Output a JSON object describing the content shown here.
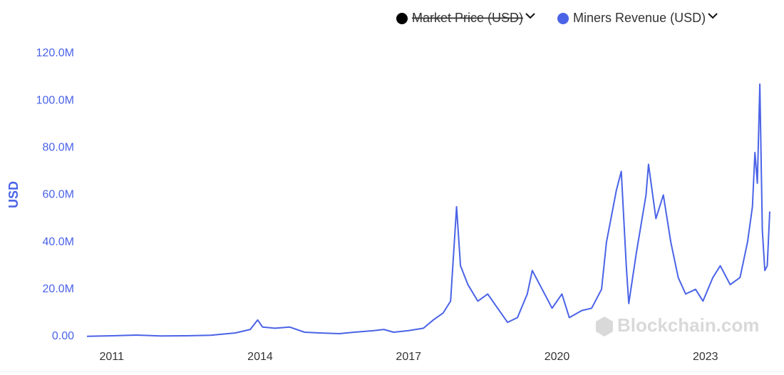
{
  "chart_data": {
    "type": "line",
    "y_label": "USD",
    "watermark": "Blockchain.com",
    "xlim": [
      2010.5,
      2024.3
    ],
    "xticks": [
      2011,
      2014,
      2017,
      2020,
      2023
    ],
    "ylim": [
      0,
      120000000
    ],
    "yticks": [
      {
        "value": 0,
        "label": "0.00"
      },
      {
        "value": 20000000,
        "label": "20.0M"
      },
      {
        "value": 40000000,
        "label": "40.0M"
      },
      {
        "value": 60000000,
        "label": "60.0M"
      },
      {
        "value": 80000000,
        "label": "80.0M"
      },
      {
        "value": 100000000,
        "label": "100.0M"
      },
      {
        "value": 120000000,
        "label": "120.0M"
      }
    ],
    "grid": false,
    "legend_hidden": [
      {
        "name": "Market Price (USD)",
        "color": "#000000"
      }
    ],
    "x": [
      2010.5,
      2011,
      2011.5,
      2012,
      2012.5,
      2013,
      2013.5,
      2013.8,
      2013.95,
      2014.05,
      2014.3,
      2014.6,
      2014.9,
      2015.2,
      2015.6,
      2015.9,
      2016.3,
      2016.5,
      2016.7,
      2017.0,
      2017.3,
      2017.5,
      2017.7,
      2017.85,
      2017.97,
      2018.05,
      2018.2,
      2018.4,
      2018.6,
      2018.8,
      2019.0,
      2019.2,
      2019.4,
      2019.5,
      2019.7,
      2019.9,
      2020.1,
      2020.25,
      2020.5,
      2020.7,
      2020.9,
      2021.0,
      2021.2,
      2021.3,
      2021.4,
      2021.45,
      2021.6,
      2021.8,
      2021.85,
      2022.0,
      2022.15,
      2022.3,
      2022.45,
      2022.6,
      2022.8,
      2022.95,
      2023.15,
      2023.3,
      2023.5,
      2023.7,
      2023.85,
      2023.95,
      2024.0,
      2024.05,
      2024.1,
      2024.15,
      2024.2,
      2024.25,
      2024.3
    ],
    "series": [
      {
        "name": "Miners Revenue (USD)",
        "color": "#4a63e7",
        "values": [
          50000,
          300000,
          600000,
          200000,
          300000,
          500000,
          1500000,
          3000000,
          7000000,
          4000000,
          3500000,
          4000000,
          1800000,
          1500000,
          1200000,
          1800000,
          2500000,
          3000000,
          1800000,
          2500000,
          3500000,
          7000000,
          10000000,
          15000000,
          55000000,
          30000000,
          22000000,
          15000000,
          18000000,
          12000000,
          6000000,
          8000000,
          18000000,
          28000000,
          20000000,
          12000000,
          18000000,
          8000000,
          11000000,
          12000000,
          20000000,
          40000000,
          62000000,
          70000000,
          30000000,
          14000000,
          35000000,
          60000000,
          73000000,
          50000000,
          60000000,
          40000000,
          25000000,
          18000000,
          20000000,
          15000000,
          25000000,
          30000000,
          22000000,
          25000000,
          40000000,
          55000000,
          78000000,
          65000000,
          107000000,
          45000000,
          28000000,
          30000000,
          53000000
        ]
      }
    ]
  }
}
